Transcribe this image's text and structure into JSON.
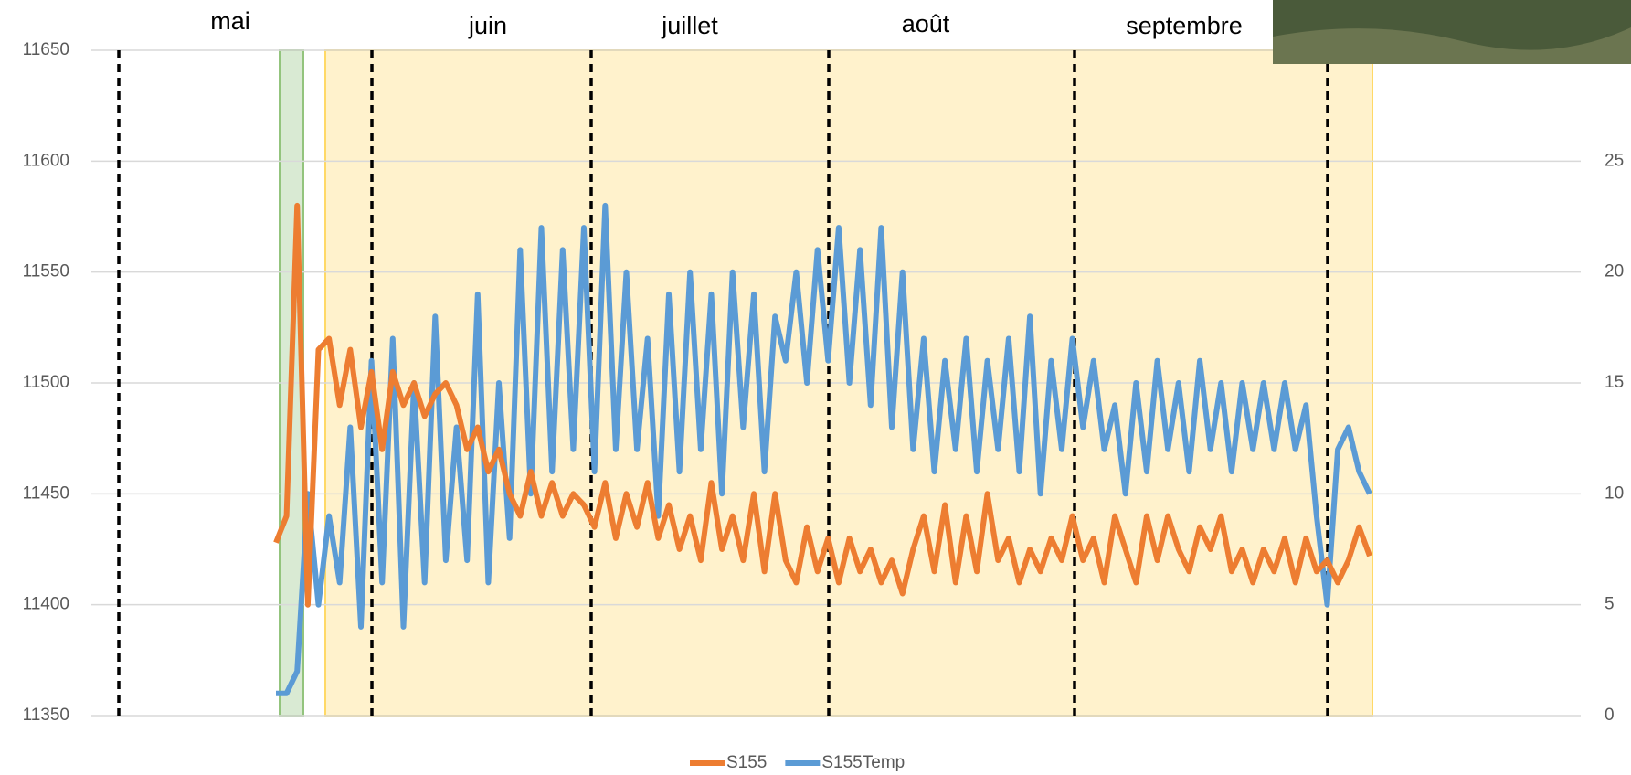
{
  "chart_data": {
    "type": "line",
    "annotations": [
      "mai",
      "juin",
      "juillet",
      "août",
      "septembre"
    ],
    "categories": [
      null,
      null,
      null,
      null,
      null,
      null,
      null,
      null,
      null,
      null,
      null,
      null,
      null,
      null,
      null,
      null,
      null,
      null,
      null,
      null,
      null,
      null,
      null,
      null,
      null,
      null,
      null,
      null,
      null,
      null,
      null,
      null,
      null,
      null,
      null,
      null,
      null,
      null,
      null,
      null,
      null,
      null,
      null,
      null,
      null,
      null,
      null,
      null,
      null,
      null,
      null,
      null,
      null,
      null,
      null,
      null,
      null,
      null,
      null,
      null,
      null,
      null,
      null,
      null,
      null,
      null,
      null,
      null,
      null,
      null,
      null,
      null,
      null,
      null,
      null,
      null,
      null,
      null,
      null,
      null,
      null,
      null,
      null,
      null,
      null,
      null,
      null,
      null,
      null,
      null,
      null,
      null,
      null,
      null,
      null,
      null,
      null,
      null,
      null,
      null,
      null,
      null,
      null,
      null
    ],
    "series": [
      {
        "name": "S155",
        "color": "#ed7d31",
        "axis": "y",
        "values": [
          11428,
          11440,
          11580,
          11400,
          11515,
          11520,
          11490,
          11515,
          11480,
          11505,
          11470,
          11505,
          11490,
          11500,
          11485,
          11495,
          11500,
          11490,
          11470,
          11480,
          11460,
          11470,
          11450,
          11440,
          11460,
          11440,
          11455,
          11440,
          11450,
          11445,
          11435,
          11455,
          11430,
          11450,
          11435,
          11455,
          11430,
          11445,
          11425,
          11440,
          11420,
          11455,
          11425,
          11440,
          11420,
          11450,
          11415,
          11450,
          11420,
          11410,
          11435,
          11415,
          11430,
          11410,
          11430,
          11415,
          11425,
          11410,
          11420,
          11405,
          11425,
          11440,
          11415,
          11445,
          11410,
          11440,
          11415,
          11450,
          11420,
          11430,
          11410,
          11425,
          11415,
          11430,
          11420,
          11440,
          11420,
          11430,
          11410,
          11440,
          11425,
          11410,
          11440,
          11420,
          11440,
          11425,
          11415,
          11435,
          11425,
          11440,
          11415,
          11425,
          11410,
          11425,
          11415,
          11430,
          11410,
          11430,
          11415,
          11420,
          11410,
          11420,
          11435,
          11422
        ]
      },
      {
        "name": "S155Temp",
        "color": "#5b9bd5",
        "axis": "y2",
        "values": [
          1,
          1,
          2,
          10,
          5,
          9,
          6,
          13,
          4,
          16,
          6,
          17,
          4,
          15,
          6,
          18,
          7,
          13,
          7,
          19,
          6,
          15,
          8,
          21,
          10,
          22,
          11,
          21,
          12,
          22,
          11,
          23,
          12,
          20,
          12,
          17,
          9,
          19,
          11,
          20,
          12,
          19,
          10,
          20,
          13,
          19,
          11,
          18,
          16,
          20,
          15,
          21,
          16,
          22,
          15,
          21,
          14,
          22,
          13,
          20,
          12,
          17,
          11,
          16,
          12,
          17,
          11,
          16,
          12,
          17,
          11,
          18,
          10,
          16,
          12,
          17,
          13,
          16,
          12,
          14,
          10,
          15,
          11,
          16,
          12,
          15,
          11,
          16,
          12,
          15,
          11,
          15,
          12,
          15,
          12,
          15,
          12,
          14,
          9,
          5,
          12,
          13,
          11,
          10
        ]
      }
    ],
    "ylim": [
      11350,
      11650
    ],
    "yticks": [
      11350,
      11400,
      11450,
      11500,
      11550,
      11600,
      11650
    ],
    "y2lim": [
      0,
      30
    ],
    "y2ticks": [
      0,
      5,
      10,
      15,
      20,
      25
    ],
    "grid": true
  }
}
